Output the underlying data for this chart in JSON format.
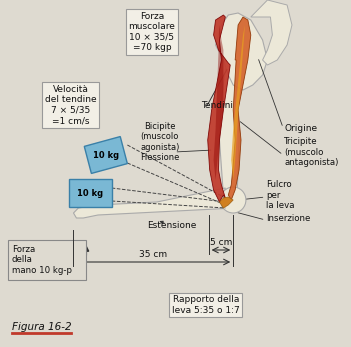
{
  "bg_color": "#c8c4b4",
  "content_bg": "#dedad0",
  "box_bg": "#f2efe6",
  "blue_box": "#7ab8d4",
  "red_muscle": "#c0392b",
  "orange_muscle": "#d4622a",
  "yellow_muscle": "#e8a020",
  "bone_color": "#ece8d8",
  "bone_edge": "#aaaaaa",
  "dark_line": "#222222",
  "annotations": {
    "forza_muscolare": "Forza\nmuscolare\n10 × 35/5\n=70 kgp",
    "velocita": "Velocità\ndel tendine\n7 × 5/35\n=1 cm/s",
    "tendini": "Tendini",
    "bicipite": "Bicipite\n(muscolo\nagonista)\nFlessione",
    "tricipite": "Tricipite\n(muscolo\nantagonista)",
    "origine": "Origine",
    "fulcro": "Fulcro\nper\nla leva",
    "inserzione": "Inserzione",
    "estensione": "Estensione",
    "forza_mano": "Forza\ndella\nmano 10 kg-p",
    "5cm": "5 cm",
    "35cm": "35 cm",
    "rapporto": "Rapporto della\nleva 5:35 o 1:7",
    "10kg_upper": "10 kg",
    "10kg_lower": "10 kg",
    "figura": "Figura 16-2"
  }
}
